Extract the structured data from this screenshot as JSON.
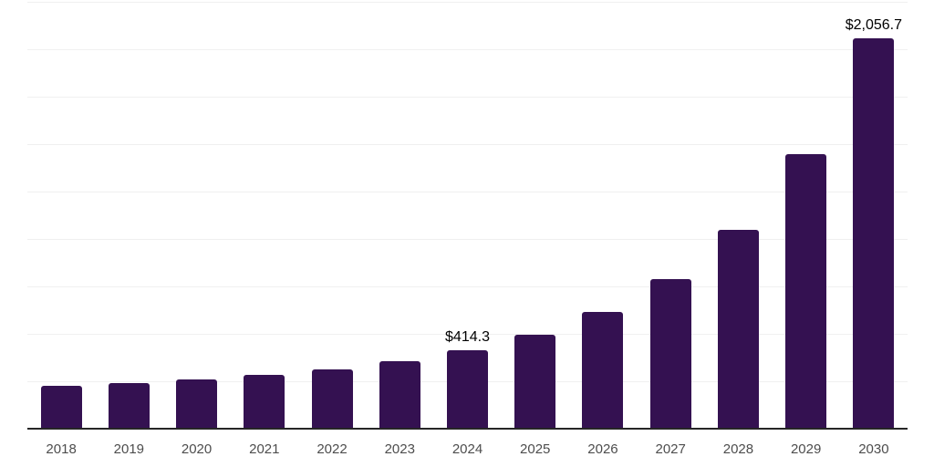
{
  "chart": {
    "background_color": "#ffffff",
    "bar_color": "#341151",
    "axis_line_color": "#262626",
    "gridline_color": "#f0f0f0",
    "tick_label_color": "#4d4d4d",
    "data_label_color": "#000000"
  },
  "chart_data": {
    "type": "bar",
    "title": "",
    "xlabel": "",
    "ylabel": "",
    "categories": [
      "2018",
      "2019",
      "2020",
      "2021",
      "2022",
      "2023",
      "2024",
      "2025",
      "2026",
      "2027",
      "2028",
      "2029",
      "2030"
    ],
    "values": [
      226,
      240,
      261,
      285,
      314,
      356,
      414.3,
      494,
      614,
      787,
      1048,
      1446,
      2056.7
    ],
    "data_labels": {
      "2024": "$414.3",
      "2030": "$2,056.7"
    },
    "ylim": [
      0,
      2250
    ],
    "gridline_step": 250,
    "grid": true,
    "legend": false,
    "y_tick_labels_visible": false
  }
}
